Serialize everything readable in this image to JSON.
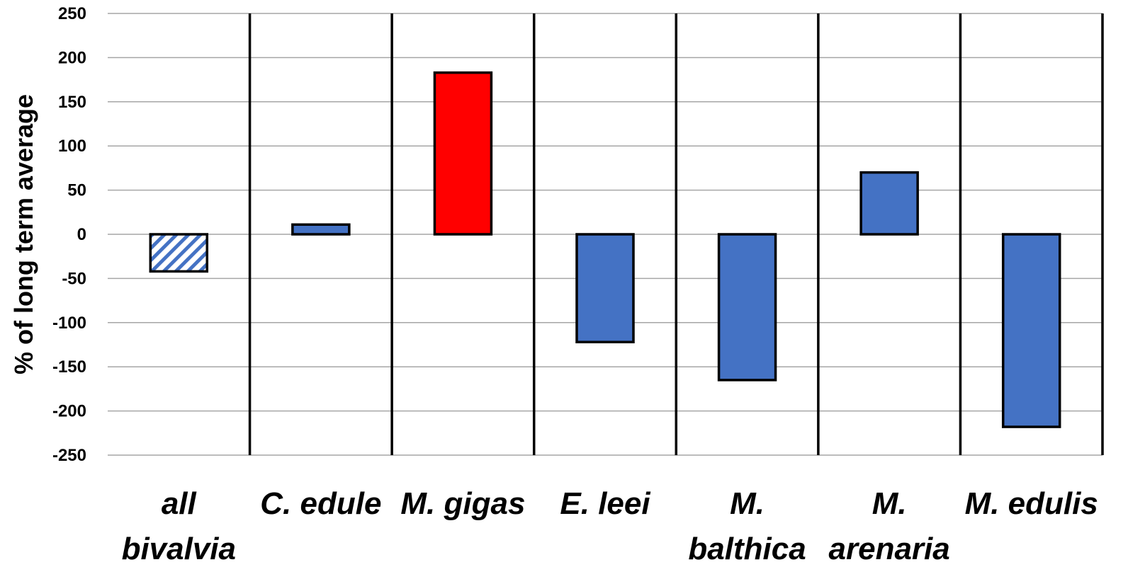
{
  "chart_data": {
    "type": "bar",
    "title": "",
    "xlabel": "",
    "ylabel": "% of long term average",
    "ylim": [
      -250,
      250
    ],
    "yticks": [
      250,
      200,
      150,
      100,
      50,
      0,
      -50,
      -100,
      -150,
      -200,
      -250
    ],
    "grid": true,
    "categories": [
      [
        "all",
        "bivalvia"
      ],
      [
        "C. edule"
      ],
      [
        "M. gigas"
      ],
      [
        "E. leei"
      ],
      [
        "M.",
        "balthica"
      ],
      [
        "M.",
        "arenaria"
      ],
      [
        "M. edulis"
      ]
    ],
    "values": [
      -42,
      11,
      183,
      -122,
      -165,
      70,
      -218
    ],
    "bar_styles": [
      "hatched-blue",
      "solid-blue",
      "solid-red",
      "solid-blue",
      "solid-blue",
      "solid-blue",
      "solid-blue"
    ],
    "colors": {
      "blue": "#4472C4",
      "red": "#FF0000",
      "outline": "#000000",
      "grid": "#A6A6A6"
    }
  }
}
